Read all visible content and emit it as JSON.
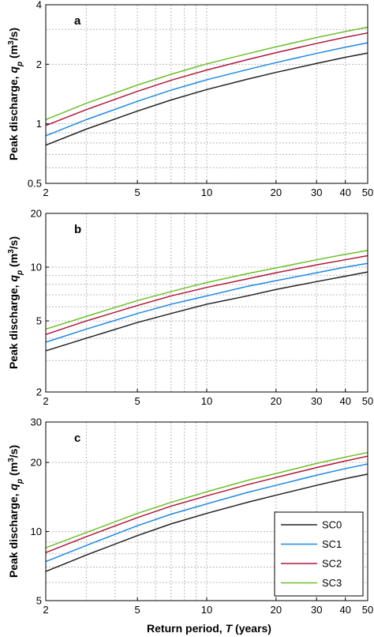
{
  "chart_data": [
    {
      "type": "line",
      "panel": "a",
      "x": [
        2,
        3,
        5,
        7,
        10,
        15,
        20,
        30,
        40,
        50
      ],
      "series": [
        {
          "name": "SC0",
          "color": "#222222",
          "values": [
            0.78,
            0.94,
            1.16,
            1.32,
            1.49,
            1.68,
            1.82,
            2.02,
            2.17,
            2.28
          ]
        },
        {
          "name": "SC1",
          "color": "#1e88e5",
          "values": [
            0.87,
            1.05,
            1.3,
            1.48,
            1.67,
            1.88,
            2.04,
            2.27,
            2.44,
            2.57
          ]
        },
        {
          "name": "SC2",
          "color": "#b0183c",
          "values": [
            0.98,
            1.18,
            1.46,
            1.66,
            1.87,
            2.11,
            2.29,
            2.55,
            2.74,
            2.88
          ]
        },
        {
          "name": "SC3",
          "color": "#6cc02c",
          "values": [
            1.05,
            1.27,
            1.57,
            1.78,
            2.01,
            2.26,
            2.45,
            2.73,
            2.93,
            3.08
          ]
        }
      ],
      "xscale": "log",
      "yscale": "log",
      "xlim": [
        2,
        50
      ],
      "ylim": [
        0.5,
        4
      ],
      "xticks": [
        "2",
        "5",
        "10",
        "20",
        "30",
        "40",
        "50"
      ],
      "yticks": [
        "0.5",
        "1",
        "2",
        "4"
      ],
      "grid": true
    },
    {
      "type": "line",
      "panel": "b",
      "x": [
        2,
        3,
        5,
        7,
        10,
        15,
        20,
        30,
        40,
        50
      ],
      "series": [
        {
          "name": "SC0",
          "color": "#222222",
          "values": [
            3.4,
            4.0,
            4.9,
            5.5,
            6.2,
            6.9,
            7.5,
            8.3,
            8.9,
            9.4
          ]
        },
        {
          "name": "SC1",
          "color": "#1e88e5",
          "values": [
            3.8,
            4.5,
            5.5,
            6.2,
            6.9,
            7.8,
            8.4,
            9.3,
            10.0,
            10.5
          ]
        },
        {
          "name": "SC2",
          "color": "#b0183c",
          "values": [
            4.2,
            5.0,
            6.1,
            6.9,
            7.7,
            8.6,
            9.3,
            10.3,
            11.0,
            11.6
          ]
        },
        {
          "name": "SC3",
          "color": "#6cc02c",
          "values": [
            4.5,
            5.3,
            6.5,
            7.3,
            8.2,
            9.2,
            9.9,
            11.0,
            11.8,
            12.4
          ]
        }
      ],
      "xscale": "log",
      "yscale": "log",
      "xlim": [
        2,
        50
      ],
      "ylim": [
        2,
        20
      ],
      "xticks": [
        "2",
        "5",
        "10",
        "20",
        "30",
        "40",
        "50"
      ],
      "yticks": [
        "2",
        "5",
        "10",
        "20"
      ],
      "grid": true
    },
    {
      "type": "line",
      "panel": "c",
      "x": [
        2,
        3,
        5,
        7,
        10,
        15,
        20,
        30,
        40,
        50
      ],
      "series": [
        {
          "name": "SC0",
          "color": "#222222",
          "values": [
            6.7,
            7.9,
            9.6,
            10.8,
            12.0,
            13.4,
            14.4,
            15.9,
            17.0,
            17.8
          ]
        },
        {
          "name": "SC1",
          "color": "#1e88e5",
          "values": [
            7.4,
            8.7,
            10.6,
            11.9,
            13.2,
            14.8,
            15.9,
            17.6,
            18.8,
            19.7
          ]
        },
        {
          "name": "SC2",
          "color": "#b0183c",
          "values": [
            8.1,
            9.5,
            11.5,
            12.9,
            14.3,
            16.0,
            17.2,
            19.0,
            20.3,
            21.3
          ]
        },
        {
          "name": "SC3",
          "color": "#6cc02c",
          "values": [
            8.5,
            9.9,
            12.0,
            13.4,
            14.9,
            16.7,
            17.9,
            19.8,
            21.1,
            22.1
          ]
        }
      ],
      "xscale": "log",
      "yscale": "log",
      "xlim": [
        2,
        50
      ],
      "ylim": [
        5,
        30
      ],
      "xticks": [
        "2",
        "5",
        "10",
        "20",
        "30",
        "40",
        "50"
      ],
      "yticks": [
        "5",
        "10",
        "20",
        "30"
      ],
      "grid": true,
      "legend": "bottom-right"
    }
  ],
  "labels": {
    "ylabel_main": "Peak discharge, ",
    "ylabel_var": "q",
    "ylabel_sub": "p",
    "ylabel_unit_open": " (m",
    "ylabel_unit_exp": "3",
    "ylabel_unit_close": "/s)",
    "xlabel_main": "Return period, ",
    "xlabel_var": "T",
    "xlabel_unit": " (years)"
  }
}
